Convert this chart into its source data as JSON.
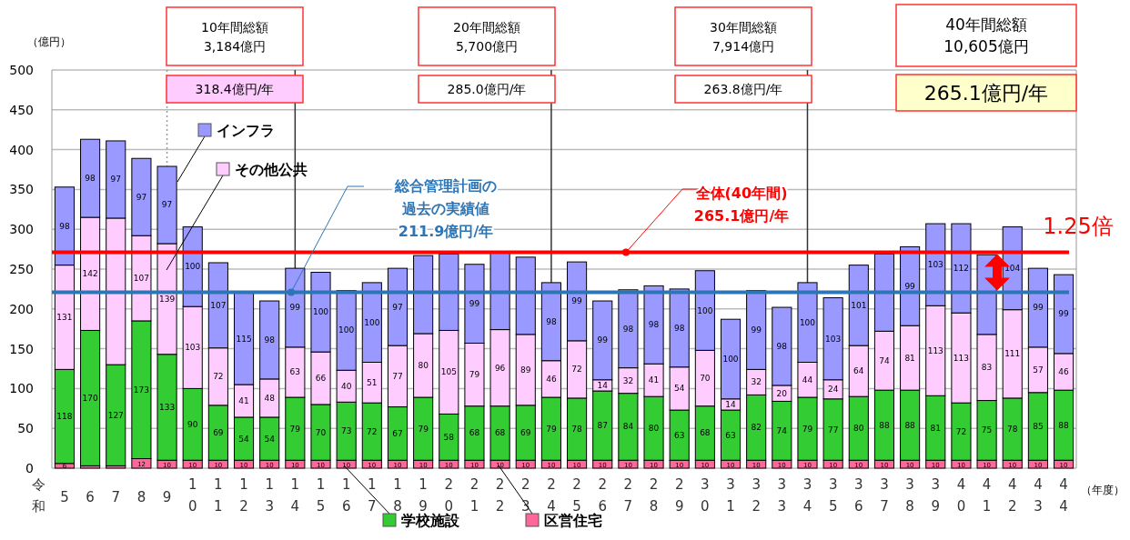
{
  "chart_data": {
    "type": "bar",
    "stacked": true,
    "grid": "y",
    "legend": "bottom left",
    "ylabel": "（億円）",
    "xlabel": "（年度）",
    "categories": [
      "5",
      "6",
      "7",
      "8",
      "9",
      "10",
      "11",
      "12",
      "13",
      "14",
      "15",
      "16",
      "17",
      "18",
      "19",
      "20",
      "21",
      "22",
      "23",
      "24",
      "25",
      "26",
      "27",
      "28",
      "29",
      "30",
      "31",
      "32",
      "33",
      "34",
      "35",
      "36",
      "37",
      "38",
      "39",
      "40",
      "41",
      "42",
      "43",
      "44"
    ],
    "series": [
      {
        "name": "区営住宅",
        "color": "#ff6699",
        "values": [
          6,
          3,
          3,
          12,
          10,
          10,
          10,
          10,
          10,
          10,
          10,
          10,
          10,
          10,
          10,
          10,
          10,
          10,
          10,
          10,
          10,
          10,
          10,
          10,
          10,
          10,
          10,
          10,
          10,
          10,
          10,
          10,
          10,
          10,
          10,
          10,
          10,
          10,
          10,
          10
        ],
        "value_labels": [
          "6",
          null,
          null,
          "12",
          "10",
          "10",
          "10",
          "10",
          "10",
          "10",
          "10",
          "10",
          "10",
          "10",
          "10",
          "10",
          "10",
          "10",
          "10",
          "10",
          "10",
          "10",
          "10",
          "10",
          "10",
          "10",
          "10",
          "10",
          "10",
          "10",
          "10",
          "10",
          "10",
          "10",
          "10",
          "10",
          "10",
          "10",
          "10",
          "10"
        ]
      },
      {
        "name": "学校施設",
        "color": "#33cc33",
        "values": [
          118,
          170,
          127,
          173,
          133,
          90,
          69,
          54,
          54,
          79,
          70,
          73,
          72,
          67,
          79,
          58,
          68,
          68,
          69,
          79,
          78,
          87,
          84,
          80,
          63,
          68,
          63,
          82,
          74,
          79,
          77,
          80,
          88,
          88,
          81,
          72,
          75,
          78,
          85,
          88
        ],
        "value_labels": [
          "118",
          "170",
          "127",
          "173",
          "133",
          "90",
          "69",
          "54",
          "54",
          "79",
          "70",
          "73",
          "72",
          "67",
          "79",
          "58",
          "68",
          "68",
          "69",
          "79",
          "78",
          "87",
          "84",
          "80",
          "63",
          "68",
          "63",
          "82",
          "74",
          "79",
          "77",
          "80",
          "88",
          "88",
          "81",
          "72",
          "75",
          "78",
          "85",
          "88"
        ]
      },
      {
        "name": "その他公共",
        "color": "#ffccff",
        "values": [
          131,
          142,
          184,
          107,
          139,
          103,
          72,
          41,
          48,
          63,
          66,
          40,
          51,
          77,
          80,
          105,
          79,
          96,
          89,
          46,
          72,
          14,
          32,
          41,
          54,
          70,
          14,
          32,
          20,
          44,
          24,
          64,
          74,
          81,
          113,
          113,
          83,
          111,
          57,
          46
        ],
        "value_labels": [
          "131",
          "142",
          null,
          "107",
          "139",
          "103",
          "72",
          "41",
          "48",
          "63",
          "66",
          "40",
          "51",
          "77",
          "80",
          "105",
          "79",
          "96",
          "89",
          "46",
          "72",
          "14",
          "32",
          "41",
          "54",
          "70",
          "14",
          "32",
          "20",
          "44",
          "24",
          "64",
          "74",
          "81",
          "113",
          "113",
          "83",
          "111",
          "57",
          "46"
        ]
      },
      {
        "name": "インフラ",
        "color": "#9999ff",
        "values": [
          98,
          98,
          97,
          97,
          97,
          100,
          107,
          115,
          98,
          99,
          100,
          100,
          100,
          97,
          98,
          96,
          99,
          98,
          97,
          98,
          99,
          99,
          98,
          98,
          98,
          100,
          100,
          99,
          98,
          100,
          103,
          101,
          97,
          99,
          103,
          112,
          100,
          104,
          99,
          99
        ],
        "value_labels": [
          "98",
          "98",
          "97",
          "97",
          "97",
          "100",
          "107",
          "115",
          "98",
          "99",
          "100",
          "100",
          "100",
          "97",
          null,
          null,
          "99",
          null,
          null,
          "98",
          "99",
          "99",
          "98",
          "98",
          "98",
          "100",
          "100",
          "99",
          "98",
          "100",
          "103",
          "101",
          null,
          "99",
          "103",
          "112",
          null,
          "104",
          "99",
          "99"
        ]
      }
    ],
    "ylim": [
      0,
      500
    ],
    "yticks": [
      0,
      50,
      100,
      150,
      200,
      250,
      300,
      350,
      400,
      450,
      500
    ],
    "ref_lines": [
      {
        "axis": "y",
        "value": 271,
        "label": "全体(40年間)\n265.1億円/年",
        "color": "#ff0000"
      },
      {
        "axis": "y",
        "value": 221,
        "label": "総合管理計画の過去の実績値\n211.9億円/年",
        "color": "#2e75b6"
      },
      {
        "axis": "x",
        "value": "9",
        "line_style": "dotted",
        "color": "#999999"
      },
      {
        "axis": "x",
        "value": "14",
        "line_style": "solid",
        "color": "#333333"
      },
      {
        "axis": "x",
        "value": "24",
        "line_style": "solid",
        "color": "#333333"
      },
      {
        "axis": "x",
        "value": "34",
        "line_style": "solid",
        "color": "#333333"
      }
    ],
    "annotations": [
      "10年間総額\n3,184億円",
      "318.4億円/年",
      "20年間総額\n5,700億円",
      "285.0億円/年",
      "30年間総額\n7,914億円",
      "263.8億円/年",
      "40年間総額\n10,605億円",
      "265.1億円/年",
      "1.25倍",
      "令和"
    ]
  }
}
